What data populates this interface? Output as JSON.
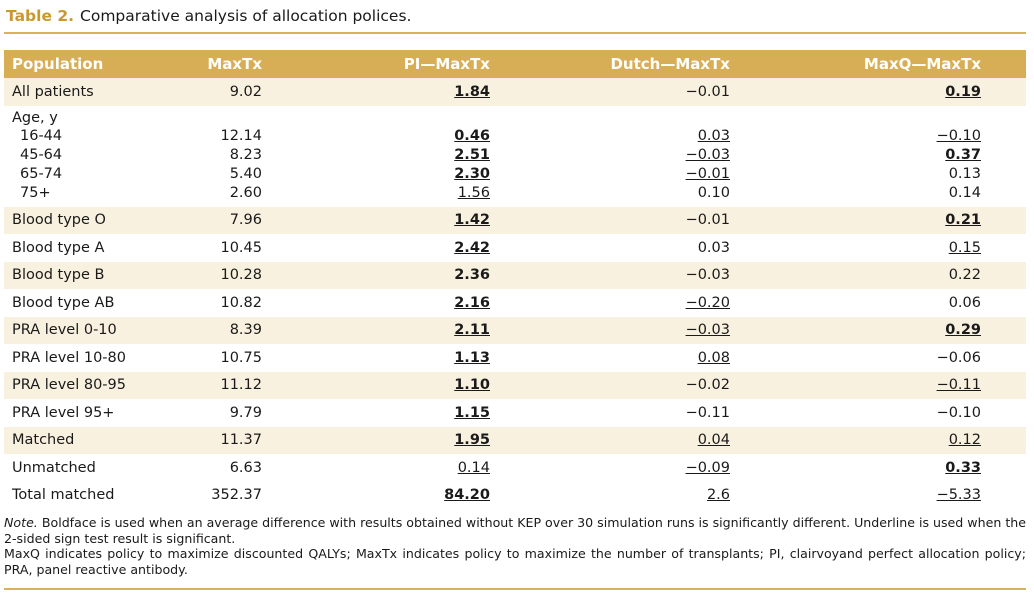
{
  "caption": {
    "label": "Table 2.",
    "text": "Comparative analysis of allocation polices."
  },
  "columns": [
    "Population",
    "MaxTx",
    "PI—MaxTx",
    "Dutch—MaxTx",
    "MaxQ—MaxTx"
  ],
  "rows": [
    {
      "population": "All patients",
      "maxtx": "9.02",
      "pi": "1.84",
      "dutch": "−0.01",
      "maxq": "0.19"
    },
    {
      "population": "Blood type O",
      "maxtx": "7.96",
      "pi": "1.42",
      "dutch": "−0.01",
      "maxq": "0.21"
    },
    {
      "population": "Blood type A",
      "maxtx": "10.45",
      "pi": "2.42",
      "dutch": "0.03",
      "maxq": "0.15"
    },
    {
      "population": "Blood type B",
      "maxtx": "10.28",
      "pi": "2.36",
      "dutch": "−0.03",
      "maxq": "0.22"
    },
    {
      "population": "Blood type AB",
      "maxtx": "10.82",
      "pi": "2.16",
      "dutch": "−0.20",
      "maxq": "0.06"
    },
    {
      "population": "PRA level 0-10",
      "maxtx": "8.39",
      "pi": "2.11",
      "dutch": "−0.03",
      "maxq": "0.29"
    },
    {
      "population": "PRA level 10-80",
      "maxtx": "10.75",
      "pi": "1.13",
      "dutch": "0.08",
      "maxq": "−0.06"
    },
    {
      "population": "PRA level 80-95",
      "maxtx": "11.12",
      "pi": "1.10",
      "dutch": "−0.02",
      "maxq": "−0.11"
    },
    {
      "population": "PRA level 95+",
      "maxtx": "9.79",
      "pi": "1.15",
      "dutch": "−0.11",
      "maxq": "−0.10"
    },
    {
      "population": "Matched",
      "maxtx": "11.37",
      "pi": "1.95",
      "dutch": "0.04",
      "maxq": "0.12"
    },
    {
      "population": "Unmatched",
      "maxtx": "6.63",
      "pi": "0.14",
      "dutch": "−0.09",
      "maxq": "0.33"
    },
    {
      "population": "Total matched",
      "maxtx": "352.37",
      "pi": "84.20",
      "dutch": "2.6",
      "maxq": "−5.33"
    }
  ],
  "age_group": {
    "label": "Age, y",
    "subrows": [
      {
        "population": "16-44",
        "maxtx": "12.14",
        "pi": "0.46",
        "dutch": "0.03",
        "maxq": "−0.10"
      },
      {
        "population": "45-64",
        "maxtx": "8.23",
        "pi": "2.51",
        "dutch": "−0.03",
        "maxq": "0.37"
      },
      {
        "population": "65-74",
        "maxtx": "5.40",
        "pi": "2.30",
        "dutch": "−0.01",
        "maxq": "0.13"
      },
      {
        "population": "75+",
        "maxtx": "2.60",
        "pi": "1.56",
        "dutch": "0.10",
        "maxq": "0.14"
      }
    ]
  },
  "note": {
    "label": "Note.",
    "line1": "Boldface is used when an average difference with results obtained without KEP over 30 simulation runs is significantly different. Underline is used when the 2-sided sign test result is significant.",
    "line2": "MaxQ indicates policy to maximize discounted QALYs; MaxTx indicates policy to maximize the number of transplants; PI, clairvoyand perfect allocation policy; PRA, panel reactive antibody."
  },
  "colors": {
    "accent": "#d7ae55",
    "caption_label": "#c8992c",
    "row_shade": "#f9f1df"
  }
}
